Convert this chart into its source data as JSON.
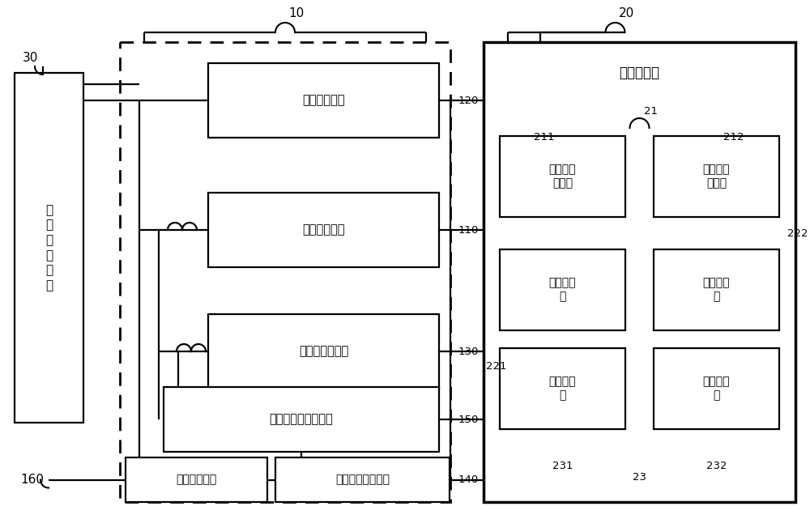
{
  "bg": "#ffffff",
  "lc": "#000000",
  "lw": 1.6,
  "fig_w": 10.0,
  "fig_h": 6.41,
  "adapter_text": "交\n直\n流\n适\n配\n器",
  "buck_text": "降压电路模块",
  "boost_text": "升压电路模块",
  "pump_text": "电荷泵电路模块",
  "ctrl_text": "电池充放电控制模块",
  "sys_text": "系统供电模块",
  "aux_text": "辅助降压电路模块",
  "bat_title": "三电芯电池",
  "conn1_text": "第一电池\n连接器",
  "conn2_text": "第二电池\n连接器",
  "tab1_text": "第一正极\n耳",
  "tab2_text": "第二正极\n耳",
  "plate1_text": "第一正极\n片",
  "plate2_text": "第二正极\n片",
  "label_10": "10",
  "label_20": "20",
  "label_30": "30",
  "label_120": "120",
  "label_110": "110",
  "label_130": "130",
  "label_150": "150",
  "label_140": "140",
  "label_160": "160",
  "label_21": "21",
  "label_211": "211",
  "label_212": "212",
  "label_221": "221",
  "label_222": "222",
  "label_231": "231",
  "label_232": "232",
  "label_23": "23"
}
